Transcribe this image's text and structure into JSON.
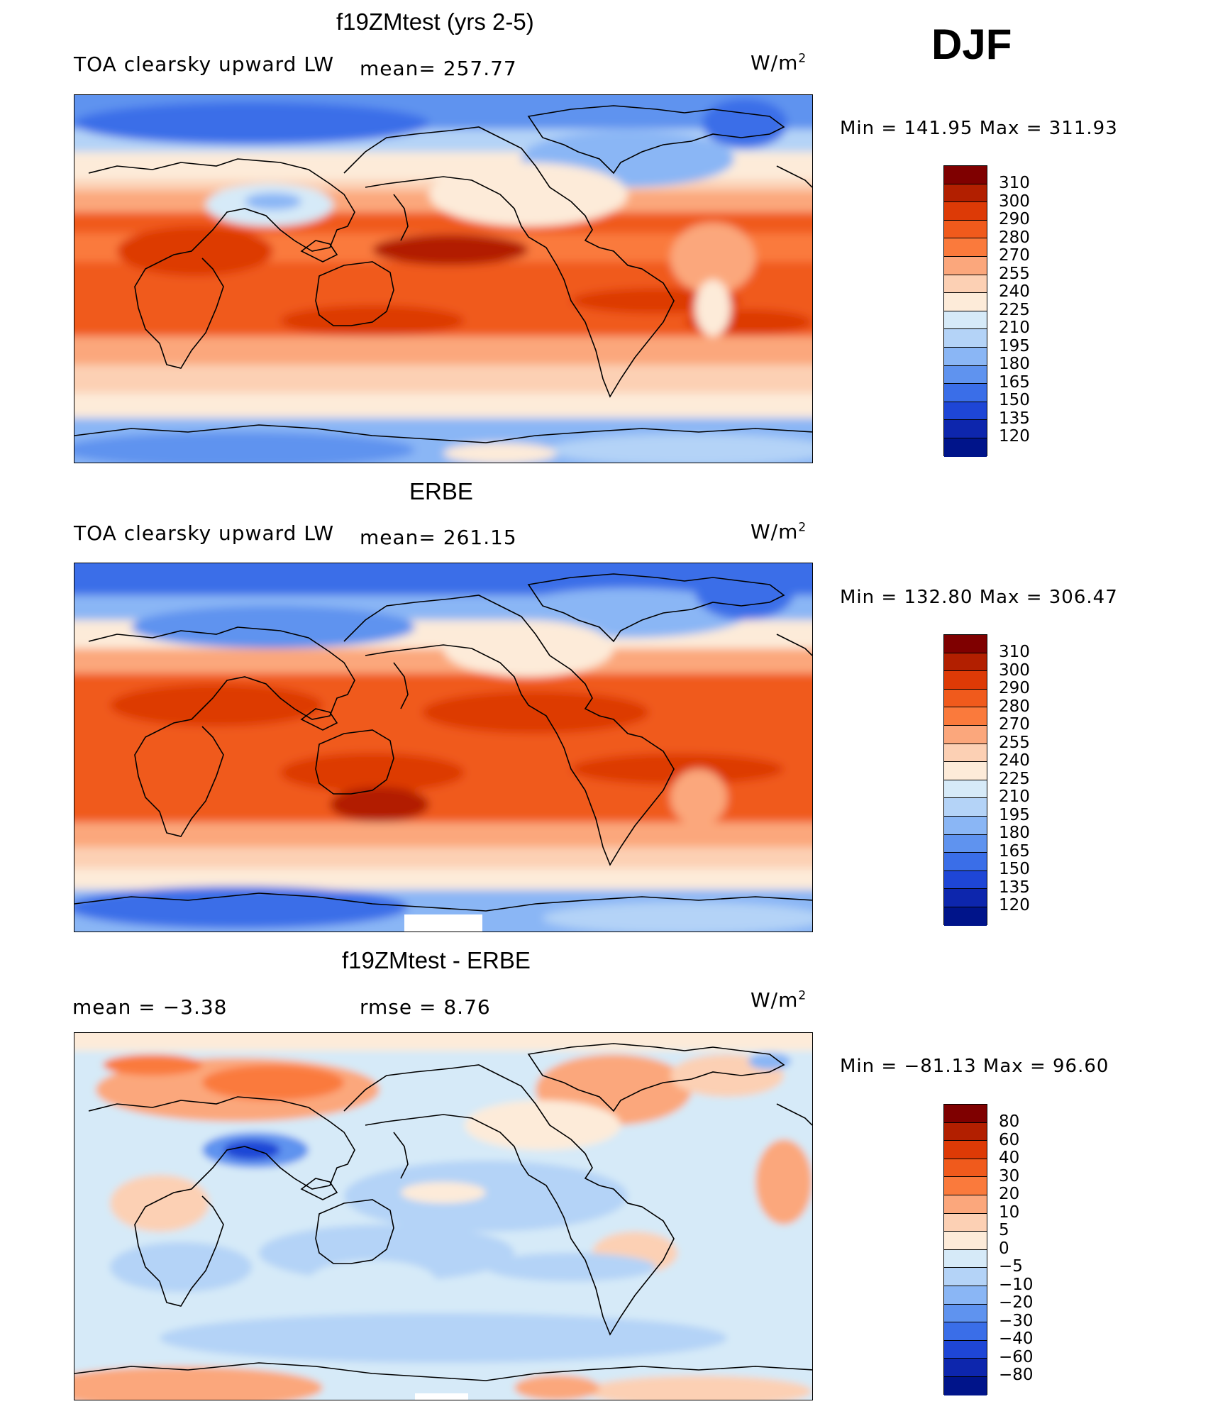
{
  "season": "DJF",
  "panels": [
    {
      "title": "f19ZMtest (yrs 2-5)",
      "left_label": "TOA clearsky upward LW",
      "mean_label": "mean= 257.77",
      "units_base": "W/m",
      "units_exp": "2",
      "minmax": "Min  =  141.95  Max  =  311.93",
      "colorbar": {
        "labels": [
          "310",
          "300",
          "290",
          "280",
          "270",
          "255",
          "240",
          "225",
          "210",
          "195",
          "180",
          "165",
          "150",
          "135",
          "120"
        ],
        "colors": [
          "#7f0000",
          "#b21f00",
          "#dd3a06",
          "#f05a1c",
          "#fa7a3c",
          "#fba77c",
          "#fcd0b4",
          "#fdebd9",
          "#d6eaf8",
          "#b4d3f7",
          "#8ab6f5",
          "#5f93ef",
          "#3a6ee8",
          "#1e46d6",
          "#0d26ad",
          "#00148a"
        ],
        "order": "top-to-bottom"
      }
    },
    {
      "title": "ERBE",
      "left_label": "TOA clearsky upward LW",
      "mean_label": "mean= 261.15",
      "units_base": "W/m",
      "units_exp": "2",
      "minmax": "Min  =  132.80  Max  =  306.47",
      "colorbar": {
        "labels": [
          "310",
          "300",
          "290",
          "280",
          "270",
          "255",
          "240",
          "225",
          "210",
          "195",
          "180",
          "165",
          "150",
          "135",
          "120"
        ],
        "colors": [
          "#7f0000",
          "#b21f00",
          "#dd3a06",
          "#f05a1c",
          "#fa7a3c",
          "#fba77c",
          "#fcd0b4",
          "#fdebd9",
          "#d6eaf8",
          "#b4d3f7",
          "#8ab6f5",
          "#5f93ef",
          "#3a6ee8",
          "#1e46d6",
          "#0d26ad",
          "#00148a"
        ],
        "order": "top-to-bottom"
      }
    },
    {
      "title": "f19ZMtest - ERBE",
      "left_label": "mean =    −3.38",
      "mean_label": "rmse =     8.76",
      "units_base": "W/m",
      "units_exp": "2",
      "minmax": "Min  =  −81.13  Max  =   96.60",
      "colorbar": {
        "labels": [
          "80",
          "60",
          "40",
          "30",
          "20",
          "10",
          "5",
          "0",
          "−5",
          "−10",
          "−20",
          "−30",
          "−40",
          "−60",
          "−80"
        ],
        "colors": [
          "#7f0000",
          "#b21f00",
          "#dd3a06",
          "#f05a1c",
          "#fa7a3c",
          "#fba77c",
          "#fcd0b4",
          "#fdebd9",
          "#d6eaf8",
          "#b4d3f7",
          "#8ab6f5",
          "#5f93ef",
          "#3a6ee8",
          "#1e46d6",
          "#0d26ad",
          "#00148a"
        ],
        "order": "top-to-bottom"
      }
    }
  ]
}
